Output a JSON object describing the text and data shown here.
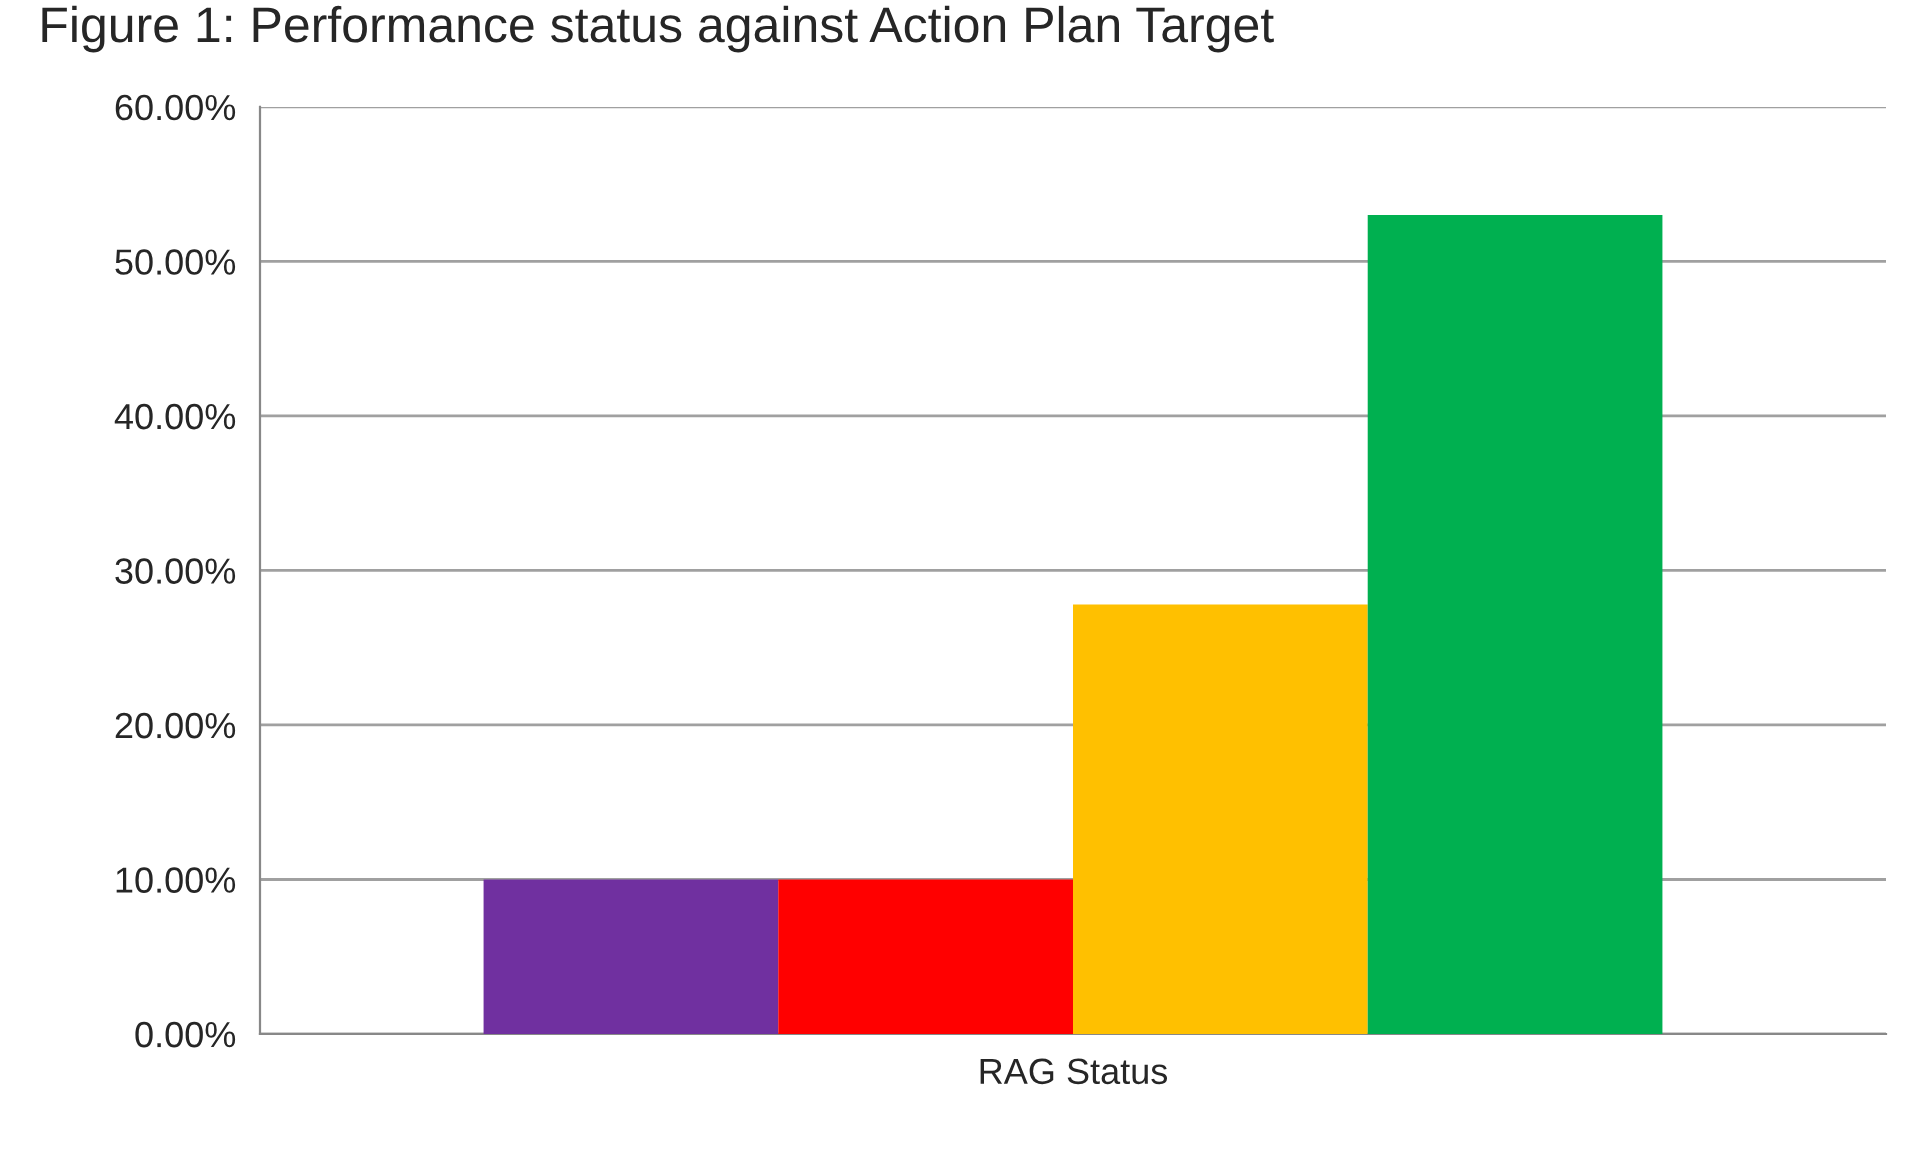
{
  "chart_data": {
    "type": "bar",
    "title": "Figure 1: Performance status against Action Plan Target",
    "categories": [
      "RAG Status"
    ],
    "series": [
      {
        "color": "#7030a0",
        "values": [
          10.0
        ]
      },
      {
        "color": "#ff0000",
        "values": [
          10.0
        ]
      },
      {
        "color": "#ffc000",
        "values": [
          27.8
        ]
      },
      {
        "color": "#00b050",
        "values": [
          53.0
        ]
      }
    ],
    "ylim": [
      0,
      60
    ],
    "yticks": [
      {
        "value": 0,
        "label": "0.00%"
      },
      {
        "value": 10,
        "label": "10.00%"
      },
      {
        "value": 20,
        "label": "20.00%"
      },
      {
        "value": 30,
        "label": "30.00%"
      },
      {
        "value": 40,
        "label": "40.00%"
      },
      {
        "value": 50,
        "label": "50.00%"
      },
      {
        "value": 60,
        "label": "60.00%"
      }
    ],
    "grid": "y"
  }
}
